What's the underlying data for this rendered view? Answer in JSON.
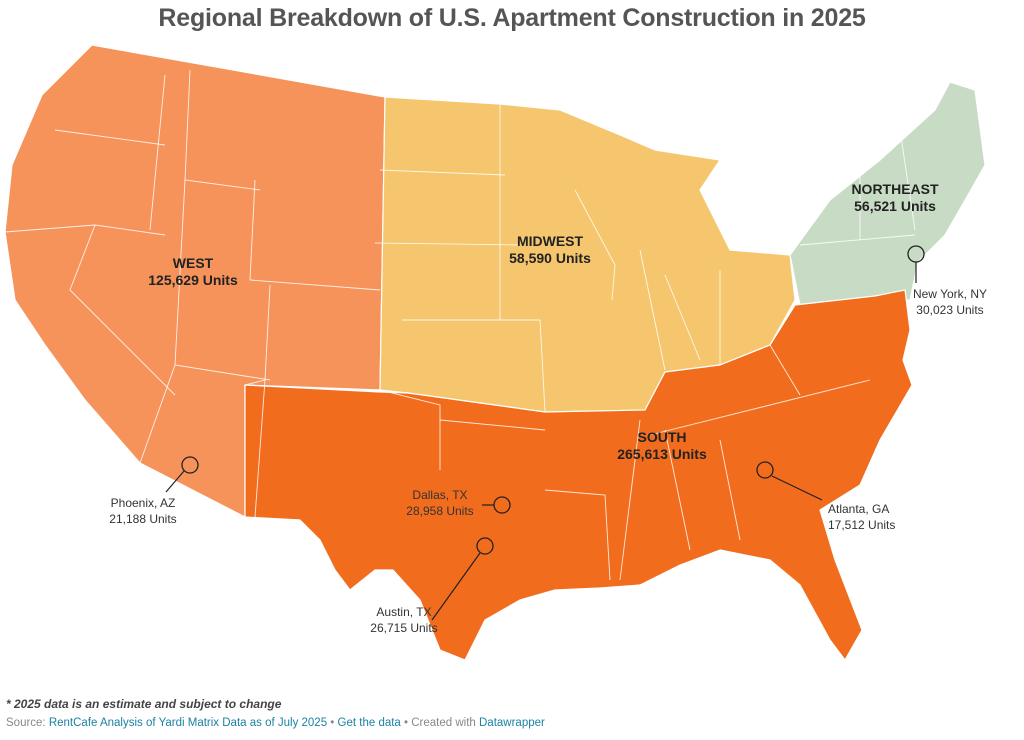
{
  "title": "Regional Breakdown of U.S. Apartment Construction in 2025",
  "colors": {
    "west": "#f5935a",
    "midwest": "#f5c66d",
    "south": "#f26c1d",
    "northeast": "#c8dcc5"
  },
  "regions": [
    {
      "key": "west",
      "name": "WEST",
      "units": "125,629 Units"
    },
    {
      "key": "midwest",
      "name": "MIDWEST",
      "units": "58,590 Units"
    },
    {
      "key": "northeast",
      "name": "NORTHEAST",
      "units": "56,521 Units"
    },
    {
      "key": "south",
      "name": "SOUTH",
      "units": "265,613 Units"
    }
  ],
  "cities": [
    {
      "name": "Phoenix, AZ",
      "units": "21,188 Units"
    },
    {
      "name": "Dallas, TX",
      "units": "28,958 Units"
    },
    {
      "name": "Austin, TX",
      "units": "26,715 Units"
    },
    {
      "name": "Atlanta, GA",
      "units": "17,512 Units"
    },
    {
      "name": "New York, NY",
      "units": "30,023 Units"
    }
  ],
  "footnote": "* 2025 data is an estimate and subject to change",
  "source": {
    "prefix": "Source: ",
    "link1": "RentCafe Analysis of Yardi Matrix Data as of July 2025",
    "sep1": " • ",
    "link2": "Get the data",
    "sep2": " • Created with ",
    "link3": "Datawrapper"
  }
}
